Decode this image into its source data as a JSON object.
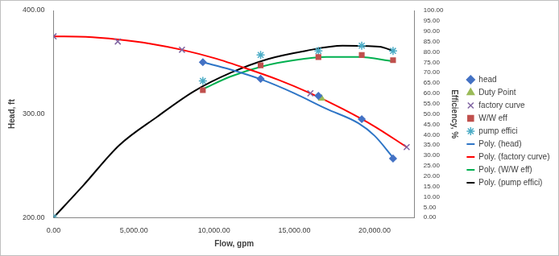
{
  "chart_data": {
    "type": "scatter",
    "x_label": "Flow, gpm",
    "y_label": "Head, ft",
    "y2_label": "Efficiency, %",
    "xlim": [
      0,
      22500
    ],
    "xticks": [
      {
        "value": 0,
        "label": "0.00"
      },
      {
        "value": 5000,
        "label": "5,000.00"
      },
      {
        "value": 10000,
        "label": "10,000.00"
      },
      {
        "value": 15000,
        "label": "15,000.00"
      },
      {
        "value": 20000,
        "label": "20,000.00"
      }
    ],
    "ylim": [
      200,
      400
    ],
    "yticks": [
      {
        "value": 200,
        "label": "200.00"
      },
      {
        "value": 300,
        "label": "300.00"
      },
      {
        "value": 400,
        "label": "400.00"
      }
    ],
    "y2lim": [
      0,
      100
    ],
    "y2ticks": [
      {
        "value": 0,
        "label": "0.00"
      },
      {
        "value": 5,
        "label": "5.00"
      },
      {
        "value": 10,
        "label": "10.00"
      },
      {
        "value": 15,
        "label": "15.00"
      },
      {
        "value": 20,
        "label": "20.00"
      },
      {
        "value": 25,
        "label": "25.00"
      },
      {
        "value": 30,
        "label": "30.00"
      },
      {
        "value": 35,
        "label": "35.00"
      },
      {
        "value": 40,
        "label": "40.00"
      },
      {
        "value": 45,
        "label": "45.00"
      },
      {
        "value": 50,
        "label": "50.00"
      },
      {
        "value": 55,
        "label": "55.00"
      },
      {
        "value": 60,
        "label": "60.00"
      },
      {
        "value": 65,
        "label": "65.00"
      },
      {
        "value": 70,
        "label": "70.00"
      },
      {
        "value": 75,
        "label": "75.00"
      },
      {
        "value": 80,
        "label": "80.00"
      },
      {
        "value": 85,
        "label": "85.00"
      },
      {
        "value": 90,
        "label": "90.00"
      },
      {
        "value": 95,
        "label": "95.00"
      },
      {
        "value": 100,
        "label": "100.00"
      }
    ],
    "grid": false,
    "legend": "right",
    "series": [
      {
        "name": "head",
        "type": "scatter",
        "marker": "diamond",
        "color": "#4472c4",
        "x": [
          9300,
          12900,
          16500,
          19200,
          21150
        ],
        "values": [
          350,
          334,
          317.5,
          295,
          257
        ]
      },
      {
        "name": "Duty Point",
        "type": "scatter",
        "marker": "triangle",
        "color": "#9bbb59",
        "x": [
          16700
        ],
        "values": [
          315
        ]
      },
      {
        "name": "factory curve",
        "type": "scatter",
        "marker": "x",
        "color": "#8064a2",
        "x": [
          0,
          4000,
          8000,
          16000,
          22000
        ],
        "values": [
          375,
          370,
          362,
          320,
          268
        ]
      },
      {
        "name": "W/W eff",
        "type": "scatter",
        "marker": "square",
        "color": "#c0504d",
        "axis": "y2",
        "x": [
          9300,
          12900,
          16500,
          19200,
          21150
        ],
        "values": [
          61.5,
          73.5,
          77.5,
          78.5,
          76
        ]
      },
      {
        "name": "pump effici",
        "type": "scatter",
        "marker": "star",
        "color": "#4bacc6",
        "axis": "y2",
        "x": [
          0,
          9300,
          12900,
          16500,
          19200,
          21150
        ],
        "values": [
          0,
          66,
          78.5,
          80.5,
          83,
          80.5
        ]
      },
      {
        "name": "Poly. (head)",
        "type": "line",
        "marker": "none",
        "line_style": "solid",
        "color": "#2e75c6",
        "x": [
          9300,
          11000,
          13000,
          15000,
          17000,
          19000,
          20000,
          21150
        ],
        "values": [
          350,
          343,
          333,
          320,
          305,
          291,
          279,
          258
        ]
      },
      {
        "name": "Poly. (factory curve)",
        "type": "line",
        "marker": "none",
        "line_style": "solid",
        "color": "#ff0000",
        "x": [
          0,
          2000,
          4000,
          6000,
          8000,
          10000,
          12000,
          14000,
          16000,
          18000,
          20000,
          22000
        ],
        "values": [
          375,
          374.5,
          372,
          368,
          362,
          354,
          344,
          333,
          320,
          305,
          288,
          268
        ]
      },
      {
        "name": "Poly. (W/W eff)",
        "type": "line",
        "marker": "none",
        "line_style": "solid",
        "color": "#00b050",
        "axis": "y2",
        "x": [
          9300,
          11000,
          13000,
          15000,
          17000,
          19000,
          21150
        ],
        "values": [
          62,
          68,
          73,
          76,
          77.5,
          77.5,
          75.5
        ]
      },
      {
        "name": "Poly. (pump effici)",
        "type": "line",
        "marker": "none",
        "line_style": "solid",
        "color": "#000000",
        "axis": "y2",
        "x": [
          0,
          1850,
          4100,
          6440,
          8750,
          11060,
          13380,
          15700,
          18000,
          20300,
          21150
        ],
        "values": [
          0,
          15.5,
          35,
          48.6,
          61,
          70,
          76.6,
          80.5,
          83,
          82.5,
          80.5
        ]
      }
    ]
  }
}
